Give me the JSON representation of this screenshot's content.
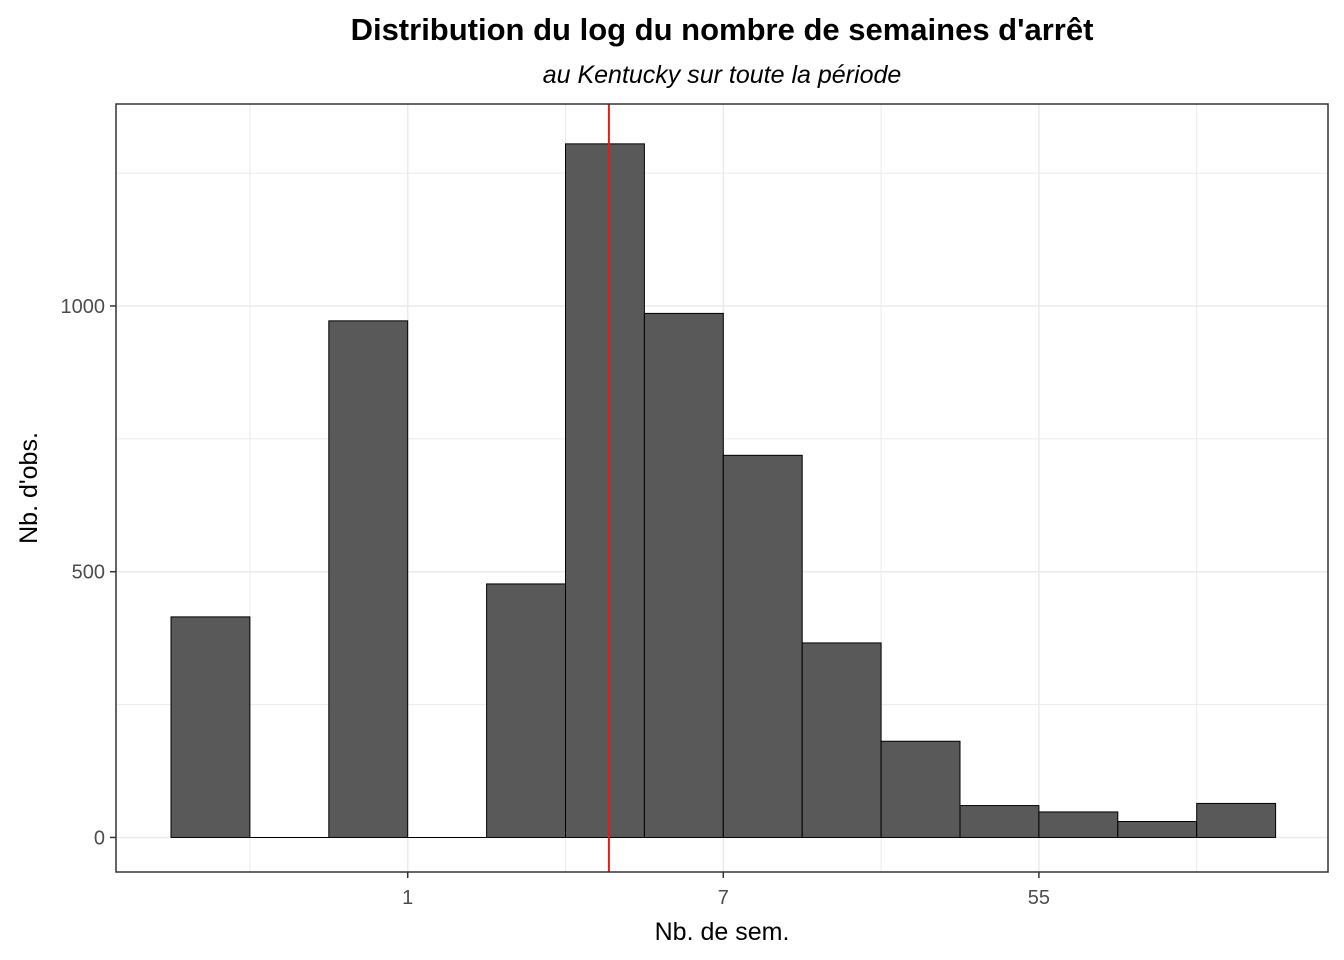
{
  "chart_data": {
    "type": "bar",
    "title": "Distribution du log du nombre de semaines d'arrêt",
    "subtitle": "au Kentucky sur toute la période",
    "xlabel": "Nb. de sem.",
    "ylabel": "Nb. d'obs.",
    "x_scale": "log",
    "x_ticks": [
      "1",
      "7",
      "55"
    ],
    "y_ticks": [
      0,
      500,
      1000
    ],
    "ylim": [
      -65,
      1380
    ],
    "grid": true,
    "bins": [
      {
        "index": 0,
        "count": 415
      },
      {
        "index": 1,
        "count": 0
      },
      {
        "index": 2,
        "count": 972
      },
      {
        "index": 3,
        "count": 0
      },
      {
        "index": 4,
        "count": 477
      },
      {
        "index": 5,
        "count": 1305
      },
      {
        "index": 6,
        "count": 986
      },
      {
        "index": 7,
        "count": 719
      },
      {
        "index": 8,
        "count": 366
      },
      {
        "index": 9,
        "count": 181
      },
      {
        "index": 10,
        "count": 60
      },
      {
        "index": 11,
        "count": 48
      },
      {
        "index": 12,
        "count": 30
      },
      {
        "index": 13,
        "count": 64
      }
    ],
    "reference_line": {
      "position_bins": 5.55,
      "color": "#e41a1c"
    },
    "colors": {
      "bar_fill": "#595959",
      "bar_stroke": "#000000",
      "grid": "#ebebeb",
      "panel_border": "#333333"
    }
  }
}
